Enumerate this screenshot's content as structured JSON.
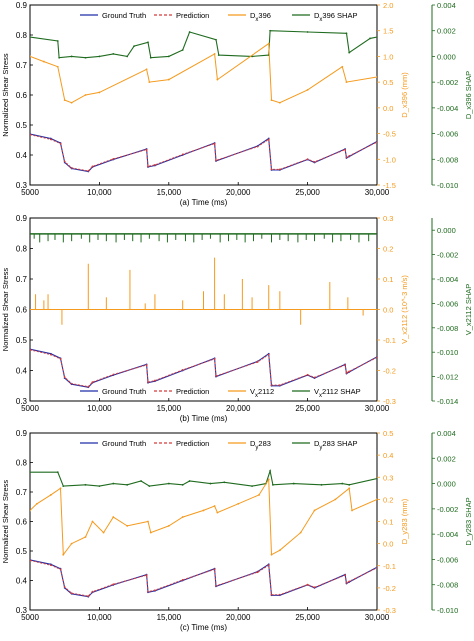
{
  "figure": {
    "colors": {
      "truth": "#1f2fa8",
      "prediction": "#d43a3a",
      "feature": "#f59a1d",
      "shap": "#1f6b1f",
      "axis": "#000000"
    }
  },
  "chart_data": [
    {
      "type": "line",
      "caption": "(a) Time (ms)",
      "xlabel": "",
      "ylabel": "Normalized Shear Stress",
      "y2label": "D_x396 (mm)",
      "y3label": "D_x396 SHAP",
      "xlim": [
        5000,
        30000
      ],
      "ylim": [
        0.3,
        0.9
      ],
      "y2lim": [
        -1.5,
        2.0
      ],
      "y3lim": [
        -0.01,
        0.004
      ],
      "xticks": [
        "5000",
        "10,000",
        "15,000",
        "20,000",
        "25,000",
        "30,000"
      ],
      "yticks": [
        "0.3",
        "0.4",
        "0.5",
        "0.6",
        "0.7",
        "0.8",
        "0.9"
      ],
      "y2ticks": [
        "-1.5",
        "-1.0",
        "-0.5",
        "0.0",
        "0.5",
        "1.0",
        "1.5",
        "2.0"
      ],
      "y3ticks": [
        "-0.010",
        "-0.008",
        "-0.006",
        "-0.004",
        "-0.002",
        "0.000",
        "0.002",
        "0.004"
      ],
      "legend_position": "top",
      "legend": [
        {
          "series": "truth",
          "label": "Ground Truth"
        },
        {
          "series": "prediction",
          "label": "Prediction"
        },
        {
          "series": "feature",
          "label": "D",
          "sub": "x",
          "rest": "396"
        },
        {
          "series": "shap",
          "label": "D",
          "sub": "x",
          "rest": "396 SHAP"
        }
      ],
      "series": {
        "truth": {
          "axis": "y",
          "x": [
            5000,
            6500,
            7200,
            7500,
            8000,
            9200,
            9500,
            11000,
            13400,
            13500,
            14000,
            16000,
            18300,
            18400,
            21400,
            22200,
            22400,
            23000,
            25000,
            25500,
            27700,
            27800,
            28000,
            30000
          ],
          "y": [
            0.47,
            0.455,
            0.44,
            0.375,
            0.355,
            0.345,
            0.36,
            0.385,
            0.42,
            0.36,
            0.365,
            0.4,
            0.44,
            0.38,
            0.43,
            0.455,
            0.35,
            0.35,
            0.385,
            0.375,
            0.42,
            0.39,
            0.395,
            0.445
          ]
        },
        "prediction": {
          "axis": "y",
          "x": [
            5000,
            6500,
            7200,
            7500,
            8000,
            9200,
            9500,
            11000,
            13400,
            13500,
            14000,
            16000,
            18300,
            18400,
            21400,
            22200,
            22400,
            23000,
            25000,
            25500,
            27700,
            27800,
            28000,
            30000
          ],
          "y": [
            0.468,
            0.452,
            0.438,
            0.378,
            0.357,
            0.347,
            0.362,
            0.387,
            0.418,
            0.362,
            0.367,
            0.402,
            0.438,
            0.382,
            0.428,
            0.452,
            0.352,
            0.352,
            0.386,
            0.377,
            0.418,
            0.392,
            0.397,
            0.443
          ]
        },
        "feature": {
          "axis": "y2",
          "x": [
            5000,
            6000,
            7000,
            7500,
            8000,
            9000,
            10000,
            13400,
            13600,
            15000,
            18300,
            18500,
            22200,
            22400,
            23000,
            25000,
            27500,
            27800,
            30000
          ],
          "y": [
            1.0,
            0.9,
            0.8,
            0.15,
            0.1,
            0.25,
            0.3,
            0.75,
            0.5,
            0.55,
            1.05,
            0.55,
            1.25,
            0.15,
            0.1,
            0.35,
            0.8,
            0.5,
            0.6
          ]
        },
        "shap": {
          "axis": "y3",
          "x": [
            5000,
            7000,
            7100,
            8000,
            9000,
            10000,
            11000,
            12000,
            12500,
            13500,
            13700,
            15000,
            16000,
            16500,
            18400,
            18600,
            21000,
            22200,
            22300,
            25000,
            27800,
            28000,
            29500,
            30000
          ],
          "y": [
            0.0015,
            0.0012,
            -0.0001,
            0.0,
            -0.0001,
            0.0,
            0.0002,
            0.0,
            0.0008,
            0.0011,
            -0.0001,
            0.0,
            0.0005,
            0.0019,
            0.0013,
            0.0001,
            0.0,
            0.0001,
            0.002,
            0.0019,
            0.0018,
            0.0003,
            0.0014,
            0.0015
          ]
        }
      }
    },
    {
      "type": "line",
      "caption": "(b) Time (ms)",
      "xlabel": "",
      "ylabel": "Normalized Shear Stress",
      "y2label": "V_x2112 (10^-3 m/s)",
      "y3label": "V_x2112 SHAP",
      "xlim": [
        5000,
        30000
      ],
      "ylim": [
        0.3,
        0.9
      ],
      "y2lim": [
        -0.3,
        0.3
      ],
      "y3lim": [
        -0.014,
        0.001
      ],
      "xticks": [
        "5000",
        "10,000",
        "15,000",
        "20,000",
        "25,000",
        "30,000"
      ],
      "yticks": [
        "0.3",
        "0.4",
        "0.5",
        "0.6",
        "0.7",
        "0.8",
        "0.9"
      ],
      "y2ticks": [
        "-0.3",
        "-0.2",
        "-0.1",
        "0.0",
        "0.1",
        "0.2",
        "0.3"
      ],
      "y3ticks": [
        "-0.014",
        "-0.012",
        "-0.010",
        "-0.008",
        "-0.006",
        "-0.004",
        "-0.002",
        "0.000"
      ],
      "legend_position": "bottom",
      "legend": [
        {
          "series": "truth",
          "label": "Ground Truth"
        },
        {
          "series": "prediction",
          "label": "Prediction"
        },
        {
          "series": "feature",
          "label": "V",
          "sub": "x",
          "rest": "2112"
        },
        {
          "series": "shap",
          "label": "V",
          "sub": "x",
          "rest": "2112 SHAP"
        }
      ],
      "series": {
        "truth": {
          "axis": "y",
          "x": [
            5000,
            6500,
            7200,
            7500,
            8000,
            9200,
            9500,
            11000,
            13400,
            13500,
            14000,
            16000,
            18300,
            18400,
            21400,
            22200,
            22400,
            23000,
            25000,
            25500,
            27700,
            27800,
            28000,
            30000
          ],
          "y": [
            0.47,
            0.455,
            0.44,
            0.375,
            0.355,
            0.345,
            0.36,
            0.385,
            0.42,
            0.36,
            0.365,
            0.4,
            0.44,
            0.38,
            0.43,
            0.455,
            0.35,
            0.35,
            0.385,
            0.375,
            0.42,
            0.39,
            0.395,
            0.445
          ]
        },
        "prediction": {
          "axis": "y",
          "x": [
            5000,
            6500,
            7200,
            7500,
            8000,
            9200,
            9500,
            11000,
            13400,
            13500,
            14000,
            16000,
            18300,
            18400,
            21400,
            22200,
            22400,
            23000,
            25000,
            25500,
            27700,
            27800,
            28000,
            30000
          ],
          "y": [
            0.468,
            0.452,
            0.438,
            0.378,
            0.357,
            0.347,
            0.362,
            0.387,
            0.418,
            0.362,
            0.367,
            0.402,
            0.438,
            0.382,
            0.428,
            0.452,
            0.352,
            0.352,
            0.386,
            0.377,
            0.418,
            0.392,
            0.397,
            0.443
          ]
        },
        "feature_base": {
          "axis": "y2",
          "value": 0.0
        },
        "feature_spikes": {
          "axis": "y2",
          "x": [
            5400,
            6000,
            6300,
            7300,
            9200,
            10500,
            12200,
            13300,
            14000,
            16000,
            17500,
            18300,
            19000,
            20300,
            21000,
            22200,
            23000,
            24500,
            26600,
            27900,
            29000
          ],
          "y": [
            0.05,
            0.03,
            0.05,
            -0.05,
            0.15,
            0.04,
            0.13,
            0.02,
            0.05,
            0.03,
            0.06,
            0.17,
            0.05,
            0.1,
            0.04,
            0.08,
            0.06,
            -0.05,
            0.09,
            0.04,
            -0.02
          ]
        },
        "shap_base": {
          "axis": "y3",
          "value": -0.0003
        },
        "shap_drops": {
          "axis": "y3",
          "x": [
            5300,
            5700,
            6300,
            6800,
            7400,
            8000,
            8700,
            9300,
            9900,
            10500,
            11200,
            11800,
            12400,
            13000,
            13600,
            14300,
            14900,
            15500,
            16200,
            16800,
            17400,
            18000,
            18700,
            19300,
            19900,
            20500,
            21100,
            21700,
            22400,
            23000,
            23600,
            24300,
            24900,
            25500,
            26200,
            26800,
            27400,
            28100,
            28700,
            29400
          ],
          "y": [
            -0.0007,
            -0.001,
            -0.0009,
            -0.0008,
            -0.001,
            -0.0009,
            -0.0007,
            -0.001,
            -0.0008,
            -0.0009,
            -0.001,
            -0.0008,
            -0.0009,
            -0.001,
            -0.0007,
            -0.0009,
            -0.001,
            -0.0008,
            -0.0009,
            -0.001,
            -0.0008,
            -0.0007,
            -0.001,
            -0.0009,
            -0.0008,
            -0.001,
            -0.0009,
            -0.0007,
            -0.001,
            -0.0008,
            -0.0009,
            -0.001,
            -0.0008,
            -0.0009,
            -0.0007,
            -0.001,
            -0.0009,
            -0.0008,
            -0.001,
            -0.0009
          ]
        }
      }
    },
    {
      "type": "line",
      "caption": "(c) Time (ms)",
      "xlabel": "",
      "ylabel": "Normalized Shear Stress",
      "y2label": "D_y283 (mm)",
      "y3label": "D_y283 SHAP",
      "xlim": [
        5000,
        30000
      ],
      "ylim": [
        0.3,
        0.9
      ],
      "y2lim": [
        -0.3,
        0.5
      ],
      "y3lim": [
        -0.01,
        0.004
      ],
      "xticks": [
        "5000",
        "10,000",
        "15,000",
        "20,000",
        "25,000",
        "30,000"
      ],
      "yticks": [
        "0.3",
        "0.4",
        "0.5",
        "0.6",
        "0.7",
        "0.8",
        "0.9"
      ],
      "y2ticks": [
        "-0.3",
        "-0.2",
        "-0.1",
        "0.0",
        "0.1",
        "0.2",
        "0.3",
        "0.4",
        "0.5"
      ],
      "y3ticks": [
        "-0.010",
        "-0.008",
        "-0.006",
        "-0.004",
        "-0.002",
        "0.000",
        "0.002",
        "0.004"
      ],
      "legend_position": "top",
      "legend": [
        {
          "series": "truth",
          "label": "Ground Truth"
        },
        {
          "series": "prediction",
          "label": "Prediction"
        },
        {
          "series": "feature",
          "label": "D",
          "sub": "y",
          "rest": "283"
        },
        {
          "series": "shap",
          "label": "D",
          "sub": "y",
          "rest": "283 SHAP"
        }
      ],
      "series": {
        "truth": {
          "axis": "y",
          "x": [
            5000,
            6500,
            7200,
            7500,
            8000,
            9200,
            9500,
            11000,
            13400,
            13500,
            14000,
            16000,
            18300,
            18400,
            21400,
            22200,
            22400,
            23000,
            25000,
            25500,
            27700,
            27800,
            28000,
            30000
          ],
          "y": [
            0.47,
            0.455,
            0.44,
            0.375,
            0.355,
            0.345,
            0.36,
            0.385,
            0.42,
            0.36,
            0.365,
            0.4,
            0.44,
            0.38,
            0.43,
            0.455,
            0.35,
            0.35,
            0.385,
            0.375,
            0.42,
            0.39,
            0.395,
            0.445
          ]
        },
        "prediction": {
          "axis": "y",
          "x": [
            5000,
            6500,
            7200,
            7500,
            8000,
            9200,
            9500,
            11000,
            13400,
            13500,
            14000,
            16000,
            18300,
            18400,
            21400,
            22200,
            22400,
            23000,
            25000,
            25500,
            27700,
            27800,
            28000,
            30000
          ],
          "y": [
            0.468,
            0.452,
            0.438,
            0.378,
            0.357,
            0.347,
            0.362,
            0.387,
            0.418,
            0.362,
            0.367,
            0.402,
            0.438,
            0.382,
            0.428,
            0.452,
            0.352,
            0.352,
            0.386,
            0.377,
            0.418,
            0.392,
            0.397,
            0.443
          ]
        },
        "feature": {
          "axis": "y2",
          "x": [
            5000,
            5500,
            6500,
            7200,
            7400,
            8000,
            9000,
            9500,
            10300,
            11000,
            12000,
            13500,
            13700,
            15000,
            16000,
            17500,
            18300,
            18500,
            20000,
            21500,
            22200,
            22400,
            23000,
            24500,
            25500,
            27000,
            28000,
            28200,
            30000
          ],
          "y": [
            0.15,
            0.18,
            0.22,
            0.25,
            -0.05,
            0.0,
            0.03,
            0.1,
            0.05,
            0.12,
            0.08,
            0.1,
            0.05,
            0.08,
            0.12,
            0.15,
            0.17,
            0.14,
            0.18,
            0.22,
            0.29,
            -0.05,
            -0.03,
            0.05,
            0.15,
            0.2,
            0.25,
            0.15,
            0.2
          ]
        },
        "shap": {
          "axis": "y3",
          "x": [
            5000,
            7000,
            7400,
            9000,
            10000,
            11000,
            12000,
            13000,
            13600,
            15000,
            16000,
            16500,
            18000,
            19000,
            21000,
            22000,
            22300,
            22500,
            24000,
            26000,
            27500,
            28000,
            30000
          ],
          "y": [
            0.0009,
            0.0009,
            -0.0002,
            -0.0001,
            -0.0002,
            0.0,
            -0.0001,
            0.0002,
            -0.0002,
            0.0,
            -0.0001,
            0.0002,
            0.0,
            0.0001,
            -0.0002,
            0.0,
            0.001,
            -0.0001,
            0.0,
            -0.0001,
            0.0,
            -0.0001,
            0.0004
          ]
        }
      }
    }
  ]
}
